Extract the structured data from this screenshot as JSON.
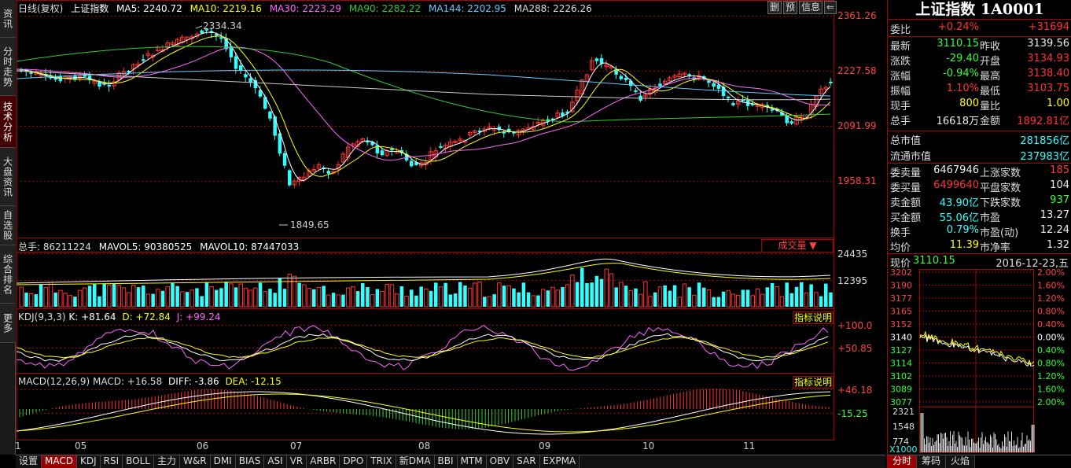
{
  "nav": [
    "资讯",
    "分时走势",
    "技术分析",
    "大盘资讯",
    "自选股",
    "综合排名",
    "更多"
  ],
  "legend": {
    "kline": "日线(复权)",
    "name": "上证指数",
    "ma5": "MA5: 2240.72",
    "ma10": "MA10: 2219.16",
    "ma30": "MA30: 2223.29",
    "ma90": "MA90: 2282.22",
    "ma144": "MA144: 2202.95",
    "ma288": "MA288: 2226.26"
  },
  "top_buttons": [
    "删",
    "预",
    "信息",
    "⇐"
  ],
  "price_axis": [
    "2361.26",
    "2227.58",
    "2091.99",
    "1958.31"
  ],
  "annotations": {
    "high": "2334.34",
    "low": "1849.65"
  },
  "volume": {
    "legend_total": "总手: 86211224",
    "mavol5": "MAVOL5: 90380525",
    "mavol10": "MAVOL10: 87447033",
    "dropdown": "成交量",
    "axis": [
      "24435",
      "12395"
    ]
  },
  "kdj": {
    "legend": "KDJ(9,3,3)",
    "k": "K: +81.64",
    "d": "D: +72.84",
    "j": "J: +99.24",
    "button": "指标说明",
    "axis": [
      "+100.0",
      "+50.85"
    ]
  },
  "macd": {
    "legend": "MACD(12,26,9)",
    "macd": "MACD: +16.58",
    "diff": "DIFF: -3.86",
    "dea": "DEA: -12.15",
    "button": "指标说明",
    "axis": [
      "+46.18",
      "-15.25"
    ]
  },
  "months": [
    "1",
    "05",
    "06",
    "07",
    "08",
    "09",
    "10",
    "11"
  ],
  "bottom_tabs": [
    "设置",
    "MACD",
    "KDJ",
    "RSI",
    "BOLL",
    "主力",
    "W&R",
    "DMI",
    "BIAS",
    "ASI",
    "VR",
    "ARBR",
    "DPO",
    "TRIX",
    "新DMA",
    "BBI",
    "MTM",
    "OBV",
    "SAR",
    "EXPMA"
  ],
  "quote": {
    "title": "上证指数 1A0001",
    "weibi_label": "委比",
    "weibi": "+0.24%",
    "weicha": "+31694",
    "rows": [
      {
        "l1": "最新",
        "v1": "3110.15",
        "l2": "昨收",
        "v2": "3139.56"
      },
      {
        "l1": "涨跌",
        "v1": "-29.40",
        "l2": "开盘",
        "v2": "3134.93"
      },
      {
        "l1": "涨幅",
        "v1": "-0.94%",
        "l2": "最高",
        "v2": "3138.40"
      },
      {
        "l1": "振幅",
        "v1": "1.10%",
        "l2": "最低",
        "v2": "3103.75"
      },
      {
        "l1": "现手",
        "v1": "800",
        "l2": "量比",
        "v2": "1.00"
      },
      {
        "l1": "总手",
        "v1": "16618万",
        "l2": "金额",
        "v2": "1892.81亿"
      }
    ],
    "mktcap_label": "总市值",
    "mktcap": "281856亿",
    "float_label": "流通市值",
    "float": "237983亿",
    "rows2": [
      {
        "l1": "委卖量",
        "v1": "6467946",
        "l2": "上涨家数",
        "v2": "185"
      },
      {
        "l1": "委买量",
        "v1": "6499640",
        "l2": "平盘家数",
        "v2": "104"
      },
      {
        "l1": "卖金额",
        "v1": "43.90亿",
        "l2": "下跌家数",
        "v2": "937"
      },
      {
        "l1": "买金额",
        "v1": "55.06亿",
        "l2": "市盈",
        "v2": "13.27"
      },
      {
        "l1": "换手",
        "v1": "0.79%",
        "l2": "市盈(动)",
        "v2": "12.24"
      },
      {
        "l1": "均价",
        "v1": "11.39",
        "l2": "市净率",
        "v2": "1.32"
      }
    ]
  },
  "mini": {
    "price_label": "现价",
    "price": "3110.15",
    "date": "2016-12-23,五",
    "left_axis": [
      "3202",
      "3190",
      "3177",
      "3165",
      "3152",
      "3140",
      "3127",
      "3114",
      "3102",
      "3089",
      "3077"
    ],
    "right_axis": [
      "2.00%",
      "1.60%",
      "1.20%",
      "0.80%",
      "0.40%",
      "0.00%",
      "0.40%",
      "0.80%",
      "1.20%",
      "1.60%",
      "2.00%"
    ],
    "vol_axis": [
      "2321",
      "1548",
      "774"
    ],
    "unit": "X1000"
  },
  "right_tabs": [
    "分时",
    "筹码",
    "火焰"
  ],
  "colors": {
    "up": "#ff3333",
    "down": "#33ffff",
    "ma5": "#ffffff",
    "ma10": "#ffff00",
    "ma30": "#ff66ff",
    "ma90": "#33cc33",
    "ma144": "#66ccff",
    "ma288": "#cccccc"
  }
}
